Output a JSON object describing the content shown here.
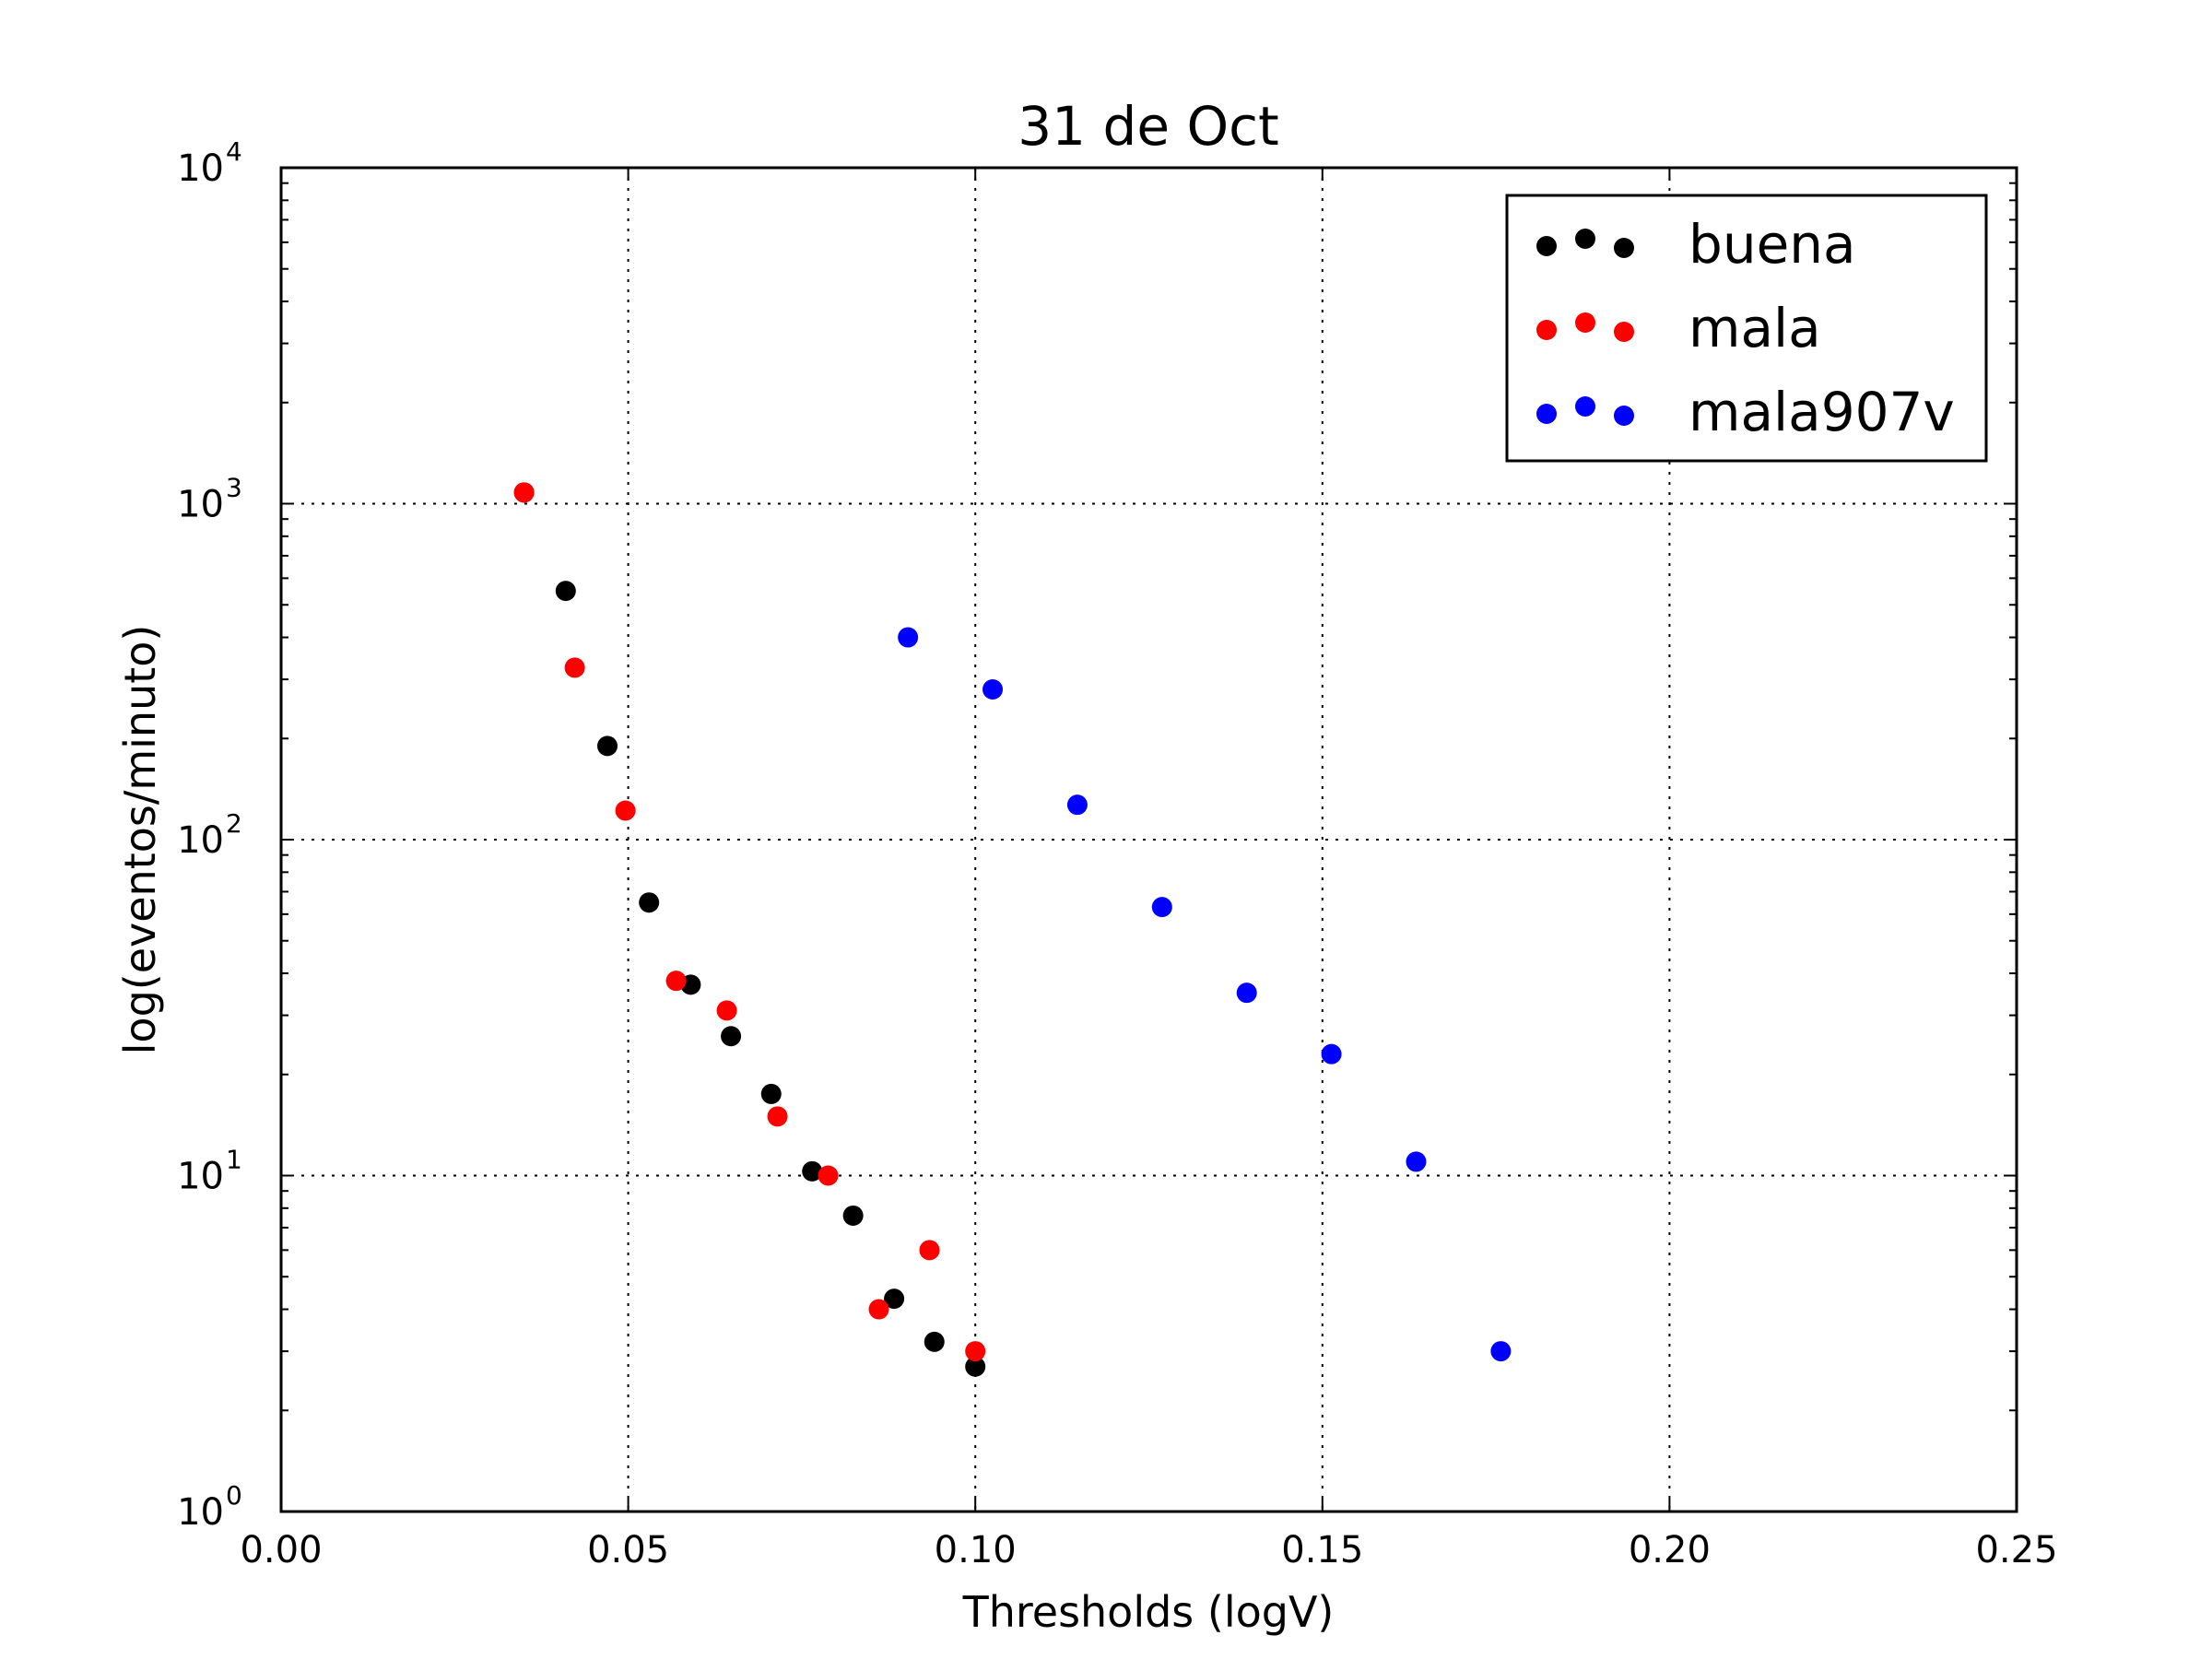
{
  "chart_data": {
    "type": "scatter",
    "title": "31 de Oct",
    "xlabel": "Thresholds (logV)",
    "ylabel": "log(eventos/minuto)",
    "xlim": [
      0.0,
      0.25
    ],
    "ylim": [
      1,
      10000
    ],
    "y_scale": "log",
    "grid": true,
    "legend_position": "top-right",
    "x_ticks": [
      "0.00",
      "0.05",
      "0.10",
      "0.15",
      "0.20",
      "0.25"
    ],
    "y_ticks": [
      {
        "base": "10",
        "exp": "0"
      },
      {
        "base": "10",
        "exp": "1"
      },
      {
        "base": "10",
        "exp": "2"
      },
      {
        "base": "10",
        "exp": "3"
      },
      {
        "base": "10",
        "exp": "4"
      }
    ],
    "series": [
      {
        "name": "buena",
        "color": "#000000",
        "x": [
          0.035,
          0.041,
          0.047,
          0.053,
          0.059,
          0.0648,
          0.0706,
          0.0765,
          0.0824,
          0.0883,
          0.0941,
          0.1
        ],
        "y": [
          1080,
          550,
          190,
          65,
          37,
          26,
          17.5,
          10.3,
          7.6,
          4.3,
          3.2,
          2.7
        ]
      },
      {
        "name": "mala",
        "color": "#ff0000",
        "x": [
          0.035,
          0.0423,
          0.0496,
          0.0569,
          0.0642,
          0.0715,
          0.0788,
          0.0861,
          0.0934,
          0.1
        ],
        "y": [
          1080,
          325,
          122,
          38,
          31,
          15,
          10,
          4.0,
          6.0,
          3.0
        ]
      },
      {
        "name": "mala907v",
        "color": "#0000ff",
        "x": [
          0.0903,
          0.1025,
          0.1147,
          0.1269,
          0.1391,
          0.1513,
          0.1635,
          0.1757
        ],
        "y": [
          400,
          280,
          127,
          63,
          35,
          23,
          11,
          3.0
        ]
      }
    ]
  }
}
